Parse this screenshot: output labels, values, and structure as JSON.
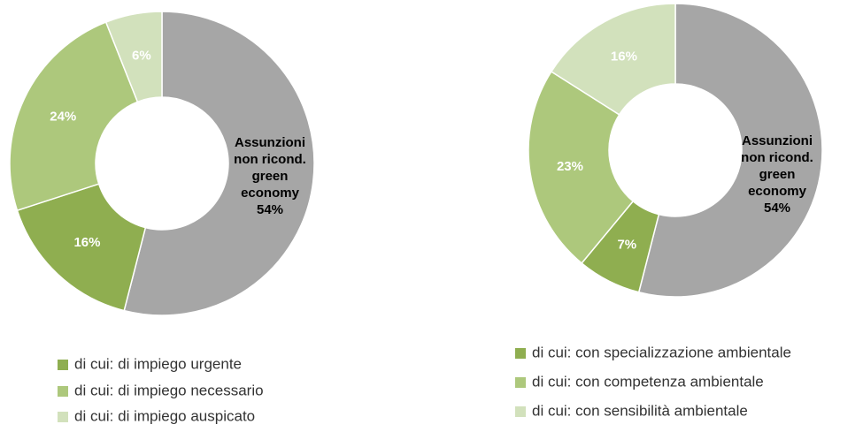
{
  "chart_data": [
    {
      "type": "donut",
      "categories": [
        "Assunzioni non ricond. green economy",
        "di cui: di impiego urgente",
        "di cui: di impiego necessario",
        "di cui: di impiego auspicato"
      ],
      "values": [
        54,
        16,
        24,
        6
      ],
      "value_labels": [
        "54%",
        "16%",
        "24%",
        "6%"
      ],
      "colors": [
        "#a6a6a6",
        "#8fae50",
        "#adc87c",
        "#d2e1bc"
      ],
      "legend": [
        1,
        2,
        3
      ]
    },
    {
      "type": "donut",
      "categories": [
        "Assunzioni non ricond. green economy",
        "di cui: con specializzazione ambientale",
        "di cui: con competenza ambientale",
        "di cui: con sensibilità ambientale"
      ],
      "values": [
        54,
        7,
        23,
        16
      ],
      "value_labels": [
        "54%",
        "7%",
        "23%",
        "16%"
      ],
      "colors": [
        "#a6a6a6",
        "#8fae50",
        "#adc87c",
        "#d2e1bc"
      ],
      "legend": [
        1,
        2,
        3
      ]
    }
  ]
}
